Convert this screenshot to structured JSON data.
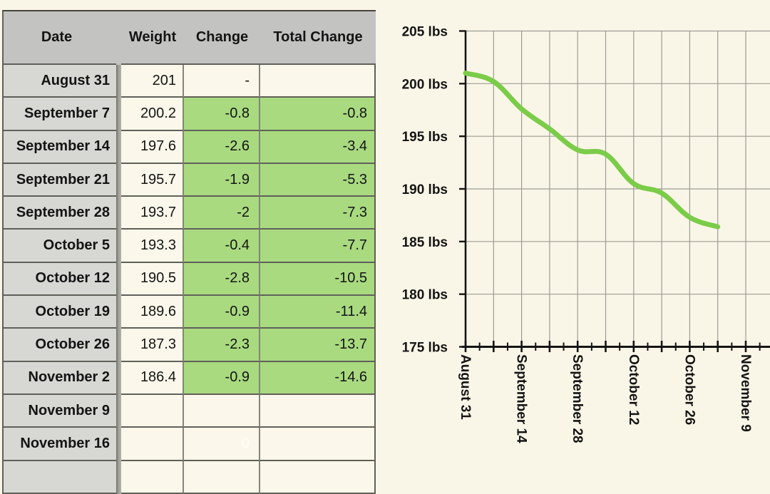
{
  "page": {
    "background": "#faf6e7"
  },
  "table": {
    "headers": [
      "Date",
      "Weight",
      "Change",
      "Total Change"
    ],
    "rows": [
      {
        "date": "August 31",
        "weight": "201",
        "change": "-",
        "total": ""
      },
      {
        "date": "September 7",
        "weight": "200.2",
        "change": "-0.8",
        "total": "-0.8"
      },
      {
        "date": "September 14",
        "weight": "197.6",
        "change": "-2.6",
        "total": "-3.4"
      },
      {
        "date": "September 21",
        "weight": "195.7",
        "change": "-1.9",
        "total": "-5.3"
      },
      {
        "date": "September 28",
        "weight": "193.7",
        "change": "-2",
        "total": "-7.3"
      },
      {
        "date": "October 5",
        "weight": "193.3",
        "change": "-0.4",
        "total": "-7.7"
      },
      {
        "date": "October 12",
        "weight": "190.5",
        "change": "-2.8",
        "total": "-10.5"
      },
      {
        "date": "October 19",
        "weight": "189.6",
        "change": "-0.9",
        "total": "-11.4"
      },
      {
        "date": "October 26",
        "weight": "187.3",
        "change": "-2.3",
        "total": "-13.7"
      },
      {
        "date": "November 2",
        "weight": "186.4",
        "change": "-0.9",
        "total": "-14.6"
      },
      {
        "date": "November 9",
        "weight": "",
        "change": "",
        "total": ""
      },
      {
        "date": "November 16",
        "weight": "",
        "change": "0",
        "total": "",
        "change_hidden": true
      },
      {
        "date": "",
        "weight": "",
        "change": "",
        "total": ""
      }
    ],
    "colors": {
      "highlight": "#a9da80",
      "header_bg": "#c3c3c1",
      "date_bg": "#d7d7d3",
      "cell_bg": "#fbf8eb"
    }
  },
  "chart_data": {
    "type": "line",
    "title": "",
    "xlabel": "",
    "ylabel": "",
    "x": [
      "August 31",
      "September 7",
      "September 14",
      "September 21",
      "September 28",
      "October 5",
      "October 12",
      "October 19",
      "October 26",
      "November 2"
    ],
    "series": [
      {
        "name": "Weight (lbs)",
        "values": [
          201,
          200.2,
          197.6,
          195.7,
          193.7,
          193.3,
          190.5,
          189.6,
          187.3,
          186.4
        ]
      }
    ],
    "x_tick_labels": [
      "August 31",
      "September 14",
      "September 28",
      "October 12",
      "October 26",
      "November 9"
    ],
    "x_tick_positions_weeks": [
      0,
      2,
      4,
      6,
      8,
      10
    ],
    "x_total_weeks": 11,
    "y_tick_labels": [
      "205 lbs",
      "200 lbs",
      "195 lbs",
      "190 lbs",
      "185 lbs",
      "180 lbs",
      "175 lbs"
    ],
    "ylim": [
      175,
      205
    ],
    "y_step": 5,
    "grid": true,
    "legend": "none",
    "colors": {
      "line": "#7bcc49",
      "grid": "#9c9c94",
      "axis": "#141414"
    }
  }
}
